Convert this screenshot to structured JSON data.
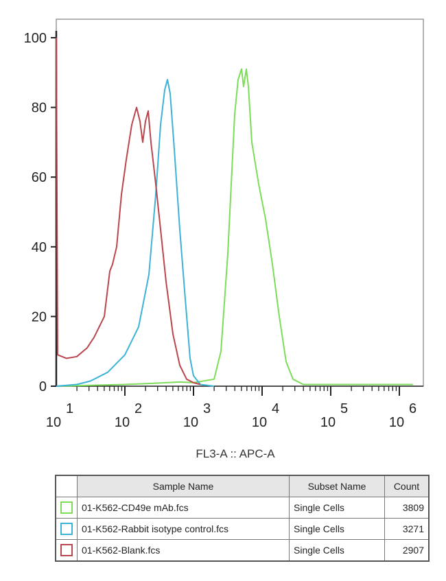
{
  "chart_data": {
    "type": "line",
    "x_scale": "log",
    "xlabel": "FL3-A :: APC-A",
    "ylabel": "",
    "ylim": [
      0,
      105
    ],
    "y_ticks": [
      0,
      20,
      40,
      60,
      80,
      100
    ],
    "x_tick_labels": [
      {
        "base": "10",
        "exp": "1"
      },
      {
        "base": "10",
        "exp": "2"
      },
      {
        "base": "10",
        "exp": "3"
      },
      {
        "base": "10",
        "exp": "4"
      },
      {
        "base": "10",
        "exp": "5"
      },
      {
        "base": "10",
        "exp": "6"
      }
    ],
    "series": [
      {
        "name": "01-K562-CD49e mAb.fcs",
        "color": "#7ddc5a",
        "points": [
          [
            1.0,
            0
          ],
          [
            2.0,
            0.5
          ],
          [
            2.4,
            0.8
          ],
          [
            2.8,
            1.2
          ],
          [
            3.0,
            1.0
          ],
          [
            3.3,
            2
          ],
          [
            3.4,
            10
          ],
          [
            3.5,
            38
          ],
          [
            3.6,
            78
          ],
          [
            3.65,
            88
          ],
          [
            3.7,
            91
          ],
          [
            3.73,
            86
          ],
          [
            3.77,
            91
          ],
          [
            3.8,
            86
          ],
          [
            3.85,
            70
          ],
          [
            3.95,
            58
          ],
          [
            4.05,
            48
          ],
          [
            4.15,
            35
          ],
          [
            4.25,
            20
          ],
          [
            4.35,
            7
          ],
          [
            4.45,
            2
          ],
          [
            4.6,
            0.5
          ],
          [
            5.5,
            0.5
          ],
          [
            6.2,
            0.5
          ]
        ]
      },
      {
        "name": "01-K562-Rabbit isotype control.fcs",
        "color": "#3bb2d6",
        "points": [
          [
            1.0,
            0
          ],
          [
            1.3,
            0.5
          ],
          [
            1.5,
            1.5
          ],
          [
            1.75,
            4
          ],
          [
            2.0,
            9
          ],
          [
            2.2,
            17
          ],
          [
            2.35,
            32
          ],
          [
            2.45,
            55
          ],
          [
            2.52,
            75
          ],
          [
            2.58,
            85
          ],
          [
            2.62,
            88
          ],
          [
            2.66,
            84
          ],
          [
            2.72,
            68
          ],
          [
            2.8,
            45
          ],
          [
            2.88,
            25
          ],
          [
            2.95,
            8
          ],
          [
            3.0,
            3
          ],
          [
            3.1,
            0.5
          ],
          [
            3.3,
            0
          ]
        ]
      },
      {
        "name": "01-K562-Blank.fcs",
        "color": "#b9454d",
        "points": [
          [
            1.0,
            100
          ],
          [
            1.02,
            9
          ],
          [
            1.15,
            8
          ],
          [
            1.3,
            8.5
          ],
          [
            1.45,
            11
          ],
          [
            1.55,
            14
          ],
          [
            1.7,
            20
          ],
          [
            1.78,
            33
          ],
          [
            1.82,
            35
          ],
          [
            1.88,
            40
          ],
          [
            1.95,
            55
          ],
          [
            2.02,
            65
          ],
          [
            2.1,
            75
          ],
          [
            2.17,
            80
          ],
          [
            2.22,
            76
          ],
          [
            2.26,
            70
          ],
          [
            2.3,
            76
          ],
          [
            2.34,
            79
          ],
          [
            2.38,
            70
          ],
          [
            2.45,
            58
          ],
          [
            2.52,
            45
          ],
          [
            2.6,
            30
          ],
          [
            2.7,
            15
          ],
          [
            2.8,
            6
          ],
          [
            2.9,
            2
          ],
          [
            3.0,
            1
          ],
          [
            3.1,
            0.5
          ]
        ]
      }
    ]
  },
  "legend": {
    "headers": [
      "Sample Name",
      "Subset Name",
      "Count"
    ],
    "rows": [
      {
        "color": "#7ddc5a",
        "sample": "01-K562-CD49e mAb.fcs",
        "subset": "Single Cells",
        "count": "3809"
      },
      {
        "color": "#3bb2d6",
        "sample": "01-K562-Rabbit isotype control.fcs",
        "subset": "Single Cells",
        "count": "3271"
      },
      {
        "color": "#b9454d",
        "sample": "01-K562-Blank.fcs",
        "subset": "Single Cells",
        "count": "2907"
      }
    ]
  }
}
